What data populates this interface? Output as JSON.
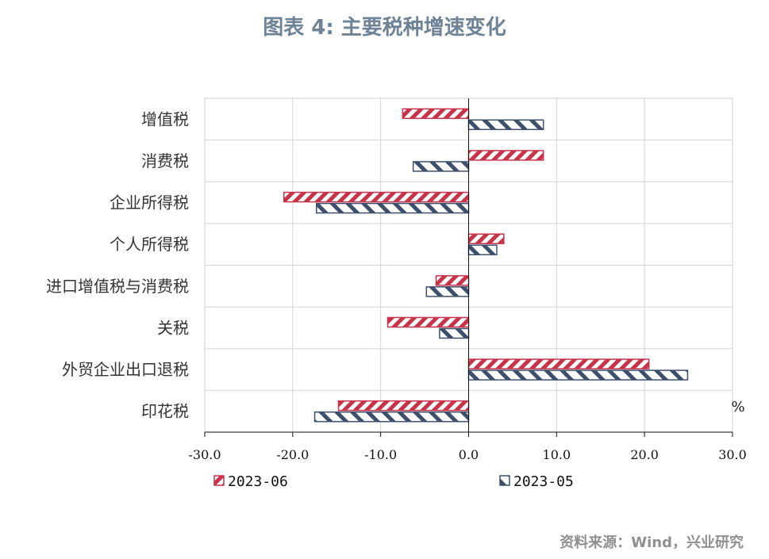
{
  "title": "图表 4:  主要税种增速变化",
  "source": "资料来源：Wind，兴业研究",
  "colors": {
    "s1": "#c8334a",
    "s2": "#3d4f6b"
  },
  "chart_data": {
    "type": "bar",
    "orientation": "horizontal",
    "categories": [
      "增值税",
      "消费税",
      "企业所得税",
      "个人所得税",
      "进口增值税与消费税",
      "关税",
      "外贸企业出口退税",
      "印花税"
    ],
    "series": [
      {
        "name": "2023-06",
        "values": [
          -7.5,
          8.5,
          -21.0,
          4.0,
          -3.7,
          -9.2,
          20.5,
          -14.8
        ]
      },
      {
        "name": "2023-05",
        "values": [
          8.5,
          -6.3,
          -17.3,
          3.2,
          -4.8,
          -3.3,
          24.9,
          -17.5
        ]
      }
    ],
    "xlim": [
      -30,
      30
    ],
    "xticks": [
      -30,
      -20,
      -10,
      0,
      10,
      20,
      30
    ],
    "tick_labels": [
      "-30.0",
      "-20.0",
      "-10.0",
      "0.0",
      "10.0",
      "20.0",
      "30.0"
    ],
    "unit": "%",
    "grid": true,
    "legend": "bottom"
  }
}
